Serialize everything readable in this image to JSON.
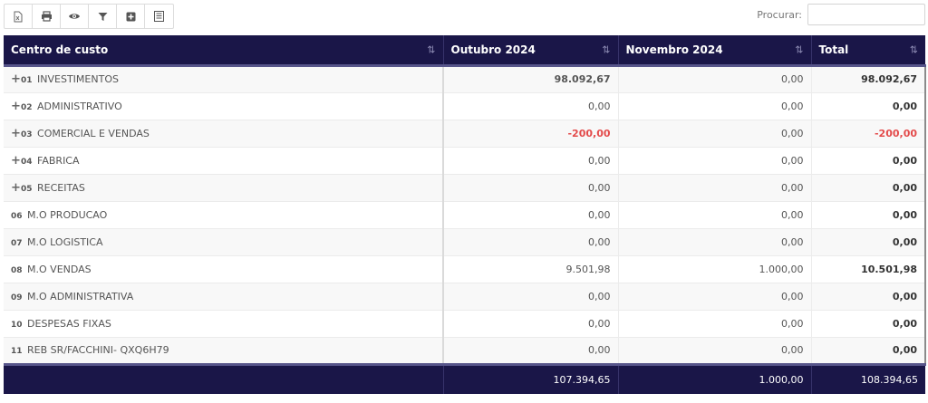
{
  "toolbar": {
    "buttons": [
      {
        "name": "excel-export-button",
        "icon": "excel-file-icon"
      },
      {
        "name": "print-button",
        "icon": "printer-icon"
      },
      {
        "name": "view-button",
        "icon": "eye-icon"
      },
      {
        "name": "filter-button",
        "icon": "filter-icon"
      },
      {
        "name": "expand-button",
        "icon": "plus-square-icon"
      },
      {
        "name": "list-button",
        "icon": "list-icon"
      }
    ]
  },
  "search": {
    "label": "Procurar:",
    "value": "",
    "placeholder": ""
  },
  "table": {
    "columns": [
      "Centro de custo",
      "Outubro 2024",
      "Novembro 2024",
      "Total"
    ],
    "rows": [
      {
        "expandable": true,
        "code": "01",
        "name": "INVESTIMENTOS",
        "oct": "98.092,67",
        "nov": "0,00",
        "total": "98.092,67",
        "oct_bold": true,
        "neg": false
      },
      {
        "expandable": true,
        "code": "02",
        "name": "ADMINISTRATIVO",
        "oct": "0,00",
        "nov": "0,00",
        "total": "0,00",
        "oct_bold": false,
        "neg": false
      },
      {
        "expandable": true,
        "code": "03",
        "name": "COMERCIAL E VENDAS",
        "oct": "-200,00",
        "nov": "0,00",
        "total": "-200,00",
        "oct_bold": false,
        "neg": true
      },
      {
        "expandable": true,
        "code": "04",
        "name": "FABRICA",
        "oct": "0,00",
        "nov": "0,00",
        "total": "0,00",
        "oct_bold": false,
        "neg": false
      },
      {
        "expandable": true,
        "code": "05",
        "name": "RECEITAS",
        "oct": "0,00",
        "nov": "0,00",
        "total": "0,00",
        "oct_bold": false,
        "neg": false
      },
      {
        "expandable": false,
        "code": "06",
        "name": "M.O PRODUCAO",
        "oct": "0,00",
        "nov": "0,00",
        "total": "0,00",
        "oct_bold": false,
        "neg": false
      },
      {
        "expandable": false,
        "code": "07",
        "name": "M.O LOGISTICA",
        "oct": "0,00",
        "nov": "0,00",
        "total": "0,00",
        "oct_bold": false,
        "neg": false
      },
      {
        "expandable": false,
        "code": "08",
        "name": "M.O VENDAS",
        "oct": "9.501,98",
        "nov": "1.000,00",
        "total": "10.501,98",
        "oct_bold": false,
        "neg": false
      },
      {
        "expandable": false,
        "code": "09",
        "name": "M.O ADMINISTRATIVA",
        "oct": "0,00",
        "nov": "0,00",
        "total": "0,00",
        "oct_bold": false,
        "neg": false
      },
      {
        "expandable": false,
        "code": "10",
        "name": "DESPESAS FIXAS",
        "oct": "0,00",
        "nov": "0,00",
        "total": "0,00",
        "oct_bold": false,
        "neg": false
      },
      {
        "expandable": false,
        "code": "11",
        "name": "REB SR/FACCHINI- QXQ6H79",
        "oct": "0,00",
        "nov": "0,00",
        "total": "0,00",
        "oct_bold": false,
        "neg": false
      }
    ],
    "footer": {
      "label": "",
      "oct": "107.394,65",
      "nov": "1.000,00",
      "total": "108.394,65"
    }
  },
  "colors": {
    "header_bg": "#1a1648",
    "negative": "#e34b4b"
  }
}
